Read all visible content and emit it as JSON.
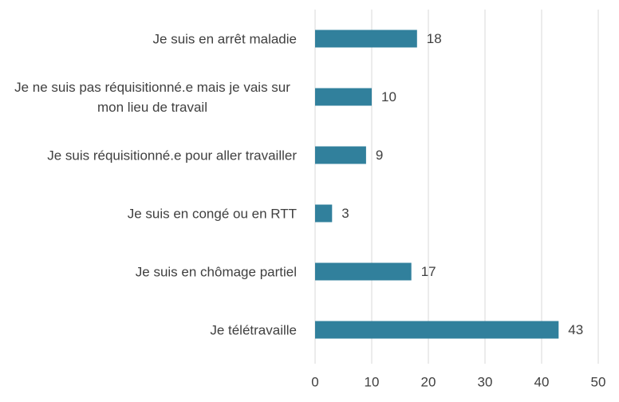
{
  "chart_data": {
    "type": "bar",
    "orientation": "horizontal",
    "categories": [
      "Je suis en arrêt maladie",
      "Je ne suis pas réquisitionné.e mais je vais sur mon lieu de travail",
      "Je suis réquisitionné.e pour aller travailler",
      "Je suis en congé ou en RTT",
      "Je suis en chômage partiel",
      "Je télétravaille"
    ],
    "values": [
      18,
      10,
      9,
      3,
      17,
      43
    ],
    "color": "#31809c",
    "xlim": [
      0,
      50
    ],
    "xticks": [
      0,
      10,
      20,
      30,
      40,
      50
    ],
    "grid": true
  }
}
